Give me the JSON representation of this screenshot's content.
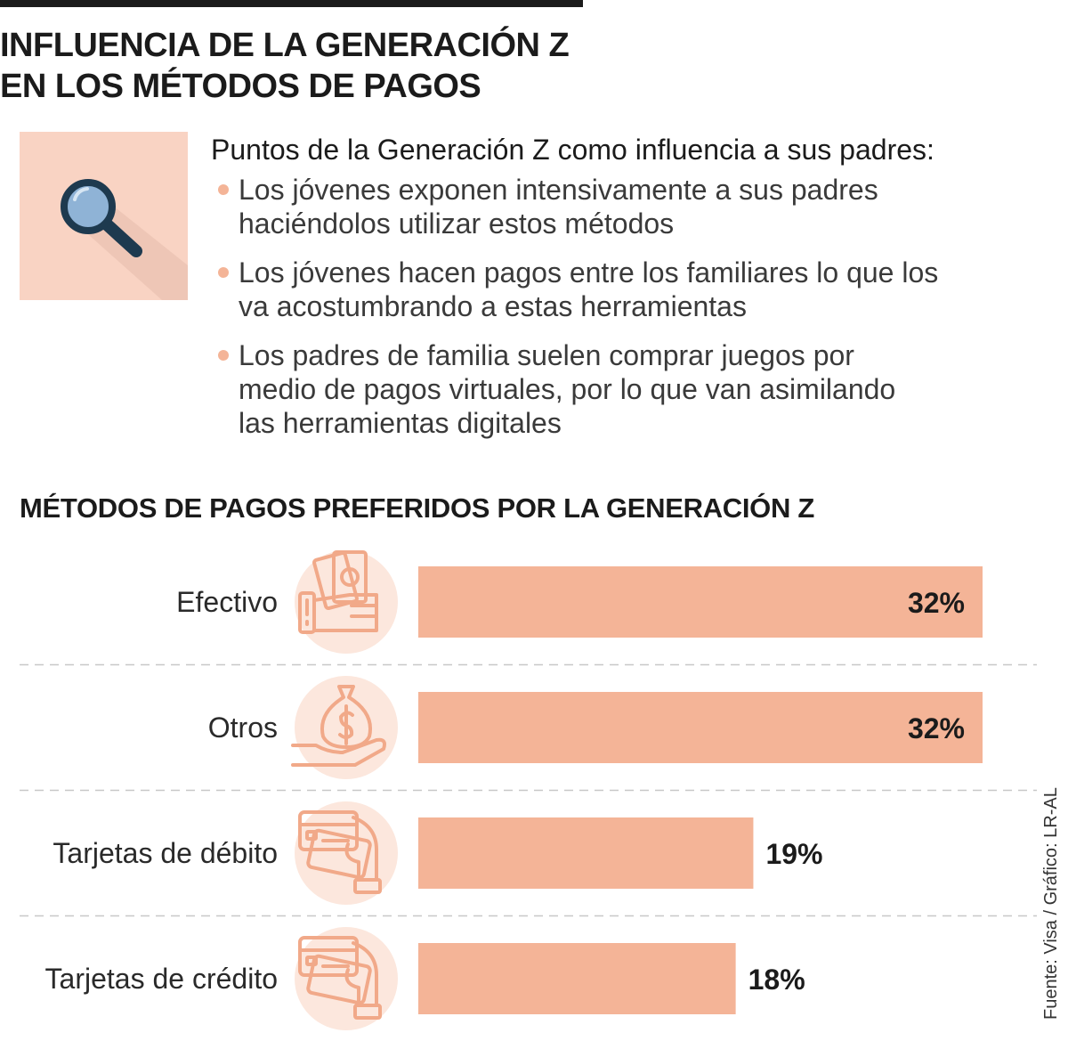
{
  "header": {
    "title_line1": "INFLUENCIA DE LA GENERACIÓN Z",
    "title_line2": "EN LOS MÉTODOS DE PAGOS"
  },
  "intro": {
    "heading": "Puntos de la Generación Z como influencia a sus padres:",
    "points": [
      {
        "line1": "Los jóvenes exponen intensivamente a sus padres",
        "line2": "haciéndolos utilizar estos métodos"
      },
      {
        "line1": "Los jóvenes hacen pagos entre los familiares lo que los",
        "line2": "va acostumbrando a estas herramientas"
      },
      {
        "line1": "Los padres de familia suelen comprar juegos por",
        "line2": "medio de pagos virtuales, por lo que van asimilando",
        "line3": "las herramientas digitales"
      }
    ]
  },
  "chart_data": {
    "type": "bar",
    "orientation": "horizontal",
    "title": "MÉTODOS DE PAGOS PREFERIDOS POR LA GENERACIÓN Z",
    "categories": [
      "Efectivo",
      "Otros",
      "Tarjetas de débito",
      "Tarjetas de crédito"
    ],
    "values": [
      32,
      32,
      19,
      18
    ],
    "value_labels": [
      "32%",
      "32%",
      "19%",
      "18%"
    ],
    "icons": [
      "cash-in-hand-icon",
      "money-bag-in-hand-icon",
      "card-in-hand-icon",
      "card-in-hand-icon"
    ],
    "unit": "%",
    "xlim": [
      0,
      32
    ],
    "grid": false,
    "bar_color": "#f4b497"
  },
  "colors": {
    "accent": "#f4b497",
    "icon_circle": "#fce7dd",
    "icon_stroke": "#f1a989",
    "magnifier_box": "#f9d3c3",
    "magnifier_frame": "#1e3a4f",
    "magnifier_lens": "#8fb3d6",
    "text": "#1b1b1b"
  },
  "footer": {
    "source": "Fuente: Visa / Gráfico: LR-AL"
  }
}
